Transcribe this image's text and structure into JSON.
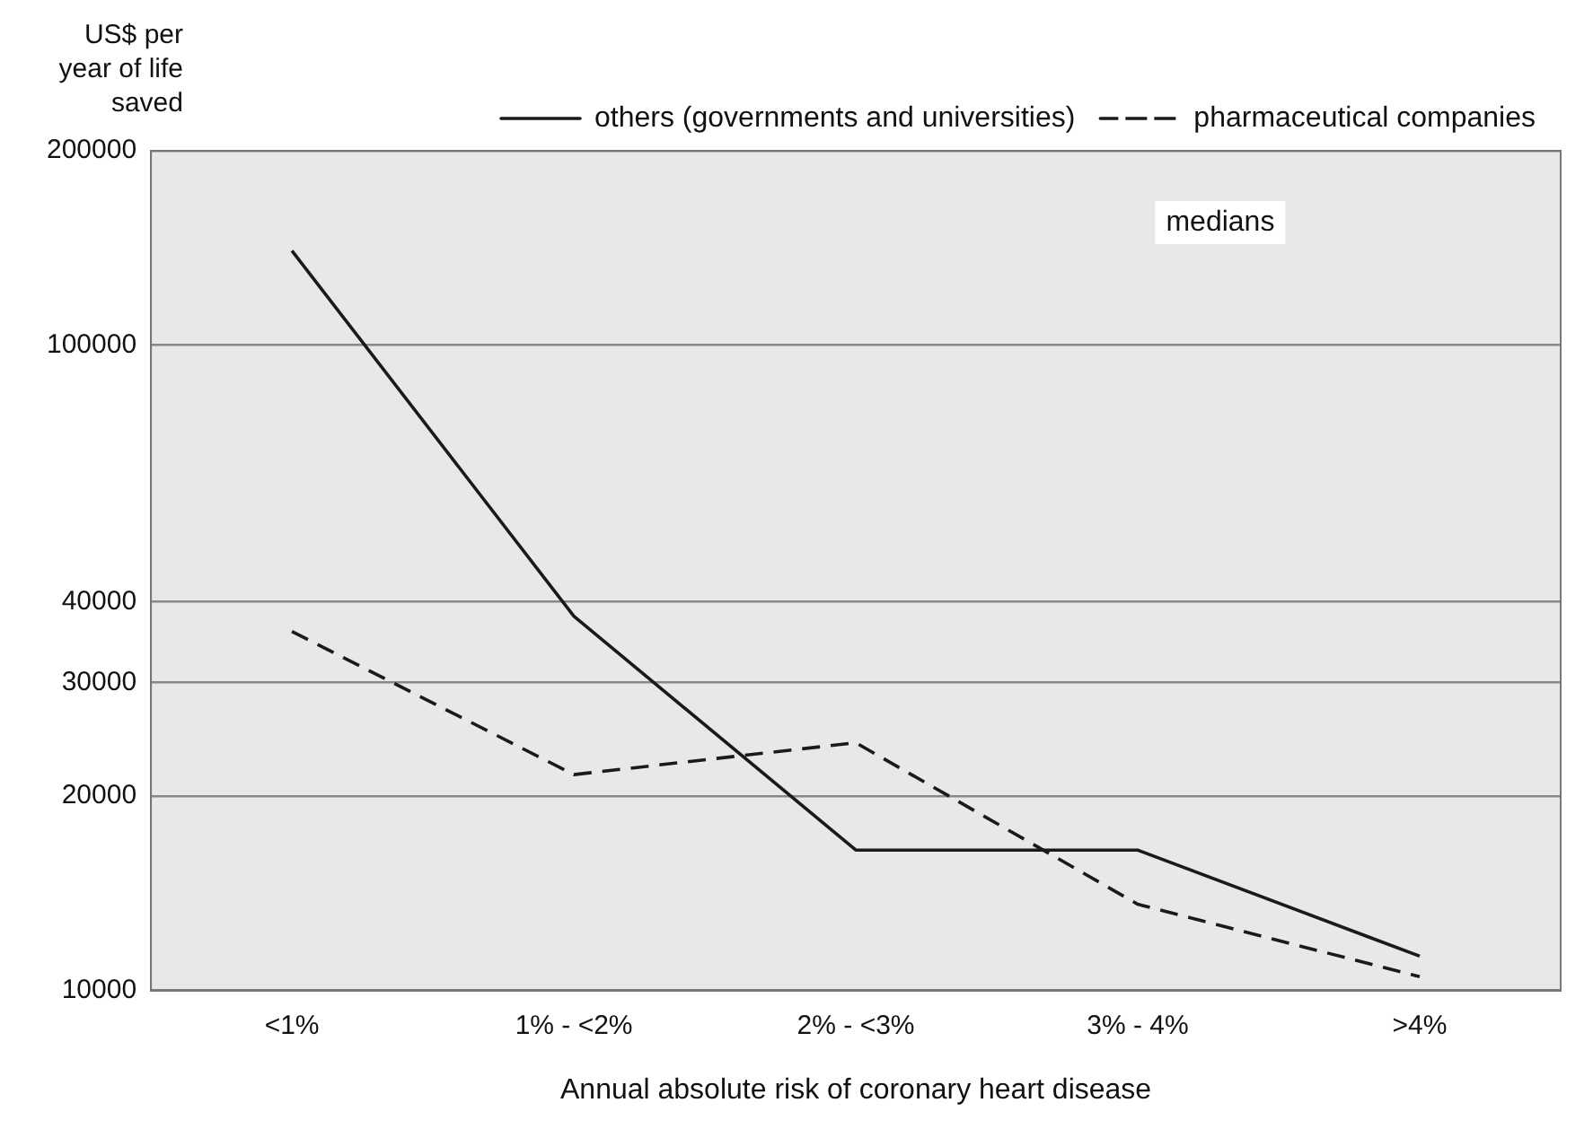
{
  "chart_data": {
    "type": "line",
    "ylabel": "US$ per year of life saved",
    "xlabel": "Annual absolute risk of coronary heart disease",
    "categories": [
      "<1%",
      "1% - <2%",
      "2% - <3%",
      "3% - 4%",
      ">4%"
    ],
    "series": [
      {
        "name": "others (governments and universities)",
        "color": "#1a1a1a",
        "line_style": "solid",
        "values": [
          140000,
          38000,
          16500,
          16500,
          11300
        ]
      },
      {
        "name": "pharmaceutical companies",
        "color": "#1a1a1a",
        "line_style": "dashed",
        "values": [
          36000,
          21600,
          24200,
          13600,
          10500
        ]
      }
    ],
    "log": "y",
    "ylim": [
      10000,
      200000
    ],
    "yticks": [
      10000,
      20000,
      30000,
      40000,
      100000,
      200000
    ],
    "grid": "y",
    "legend": "top right",
    "marker": "none",
    "annotations": [
      "medians"
    ]
  }
}
